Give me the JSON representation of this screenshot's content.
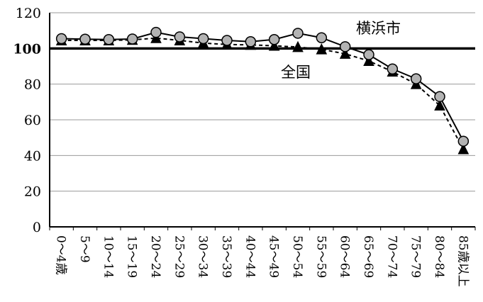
{
  "chart_data": {
    "type": "line",
    "categories": [
      "0～4歳",
      "5～9",
      "10～14",
      "15～19",
      "20～24",
      "25～29",
      "30～34",
      "35～39",
      "40～44",
      "45～49",
      "50～54",
      "55～59",
      "60～64",
      "65～69",
      "70～74",
      "75～79",
      "80～84",
      "85歳以上"
    ],
    "series": [
      {
        "name": "横浜市",
        "marker": "circle",
        "line": "solid",
        "color": "#000000",
        "marker_color": "#b3b3b3",
        "values": [
          105.5,
          105.2,
          105.0,
          105.3,
          109.0,
          106.5,
          105.5,
          104.5,
          103.8,
          105.0,
          108.5,
          106.0,
          101.0,
          96.5,
          88.5,
          83.0,
          73.0,
          48.0
        ]
      },
      {
        "name": "全国",
        "marker": "triangle",
        "line": "dashed",
        "color": "#000000",
        "marker_color": "#000000",
        "values": [
          104.5,
          104.5,
          104.5,
          104.8,
          105.8,
          104.5,
          103.0,
          102.2,
          102.0,
          101.5,
          100.8,
          99.5,
          97.0,
          93.0,
          87.0,
          80.0,
          68.0,
          43.5
        ]
      }
    ],
    "ylim": [
      0,
      120
    ],
    "yticks": [
      "0",
      "20",
      "40",
      "60",
      "80",
      "100",
      "120"
    ],
    "reference_line": 100,
    "annotations": {
      "yokohama": "横浜市",
      "national": "全国"
    },
    "xlabel": "",
    "ylabel": "",
    "grid": true
  }
}
